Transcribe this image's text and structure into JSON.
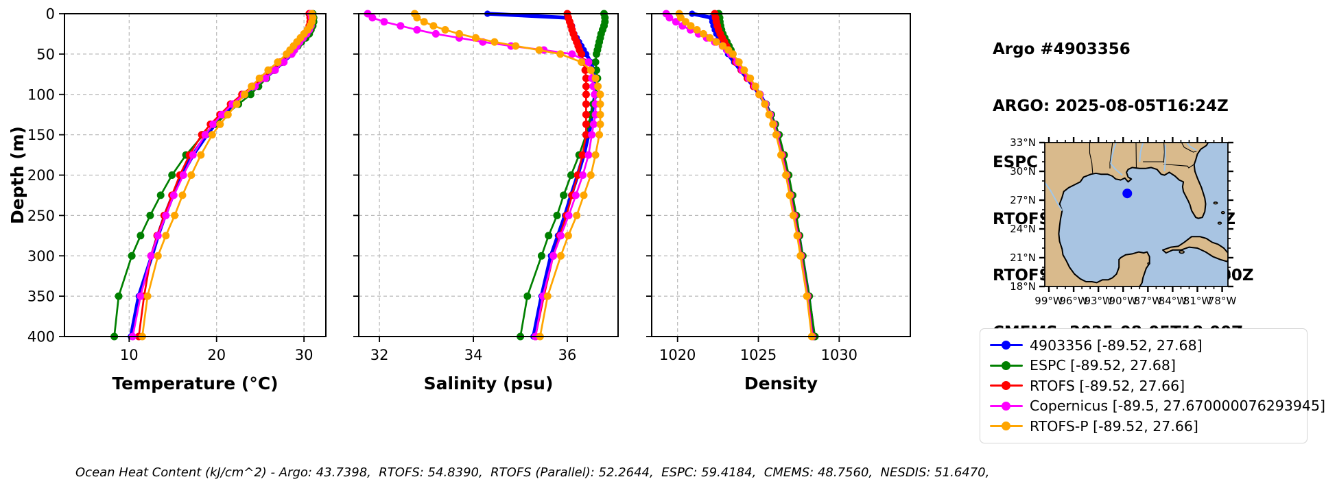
{
  "header": {
    "title": "Argo #4903356",
    "lines": [
      "ARGO: 2025-08-05T16:24Z",
      "ESPC : 2025-08-05T15:00Z",
      "RTOFS: 2025-08-05T18:00Z",
      "RTOFS-P: 2025-08-01T00:00Z",
      "CMEMS: 2025-08-05T18:00Z"
    ]
  },
  "footer": {
    "text": "Ocean Heat Content (kJ/cm^2) - Argo: 43.7398,  RTOFS: 54.8390,  RTOFS (Parallel): 52.2644,  ESPC: 59.4184,  CMEMS: 48.7560,  NESDIS: 51.6470,"
  },
  "legend": {
    "items": [
      {
        "label": "4903356 [-89.52, 27.68]",
        "color": "#0000ff"
      },
      {
        "label": "ESPC [-89.52, 27.68]",
        "color": "#008000"
      },
      {
        "label": "RTOFS [-89.52, 27.66]",
        "color": "#ff0000"
      },
      {
        "label": "Copernicus [-89.5, 27.670000076293945]",
        "color": "#ff00ff"
      },
      {
        "label": "RTOFS-P [-89.52, 27.66]",
        "color": "#ffa500"
      }
    ]
  },
  "map": {
    "lat_deg": [
      33,
      30,
      27,
      24,
      21,
      18
    ],
    "lat_labels": [
      "33°N",
      "30°N",
      "27°N",
      "24°N",
      "21°N",
      "18°N"
    ],
    "lon_deg": [
      -99,
      -96,
      -93,
      -90,
      -87,
      -84,
      -81,
      -78
    ],
    "lon_labels": [
      "99°W",
      "96°W",
      "93°W",
      "90°W",
      "87°W",
      "84°W",
      "81°W",
      "78°W"
    ],
    "marker": {
      "lon": -89.5,
      "lat": 27.7,
      "color": "#0000ff"
    },
    "land_color": "#d9ba8c",
    "ocean_color": "#a8c4e2",
    "river_color": "#9fc6ea"
  },
  "chart_data": [
    {
      "type": "line",
      "xlabel": "Temperature (°C)",
      "ylabel": "Depth (m)",
      "xlim": [
        2.6,
        32.5
      ],
      "xticks": [
        10,
        20,
        30
      ],
      "ylim": [
        0,
        400
      ],
      "yticks": [
        0,
        50,
        100,
        150,
        200,
        250,
        300,
        350,
        400
      ],
      "depths": [
        0,
        5,
        10,
        15,
        20,
        25,
        30,
        35,
        40,
        45,
        50,
        60,
        70,
        80,
        90,
        100,
        112,
        125,
        137,
        150,
        175,
        200,
        225,
        250,
        275,
        300,
        350,
        400
      ],
      "series": [
        {
          "name": "4903356",
          "color": "#0000ff",
          "values": [
            30.8,
            30.8,
            30.8,
            30.7,
            30.5,
            30.2,
            29.8,
            29.4,
            29.1,
            28.8,
            28.6,
            27.6,
            26.6,
            25.5,
            24.4,
            23.2,
            21.9,
            20.8,
            19.8,
            18.9,
            17.3,
            16.0,
            15.0,
            14.1,
            13.3,
            12.6,
            11.1,
            10.2
          ]
        },
        {
          "name": "ESPC",
          "color": "#008000",
          "values": [
            31.0,
            31.1,
            31.1,
            31.0,
            30.8,
            30.6,
            30.2,
            29.7,
            29.3,
            28.9,
            28.5,
            27.5,
            26.6,
            25.7,
            24.8,
            23.9,
            22.5,
            21.1,
            19.8,
            18.5,
            16.5,
            14.9,
            13.6,
            12.4,
            11.3,
            10.3,
            8.8,
            8.3
          ]
        },
        {
          "name": "RTOFS",
          "color": "#ff0000",
          "values": [
            30.6,
            30.7,
            30.7,
            30.6,
            30.4,
            30.1,
            29.7,
            29.3,
            28.9,
            28.6,
            28.2,
            27.3,
            26.3,
            25.2,
            24.1,
            22.9,
            21.6,
            20.4,
            19.3,
            18.3,
            16.9,
            15.8,
            14.9,
            14.0,
            13.2,
            12.5,
            11.7,
            11.1
          ]
        },
        {
          "name": "Copernicus",
          "color": "#ff00ff",
          "values": [
            30.8,
            30.9,
            30.9,
            30.8,
            30.6,
            30.3,
            29.9,
            29.5,
            29.2,
            28.9,
            28.6,
            27.7,
            26.7,
            25.6,
            24.4,
            23.1,
            21.8,
            20.6,
            19.6,
            18.7,
            17.3,
            16.2,
            15.1,
            14.2,
            13.3,
            12.5,
            11.3,
            10.4
          ]
        },
        {
          "name": "RTOFS-P",
          "color": "#ffa500",
          "values": [
            30.9,
            31.0,
            30.9,
            30.7,
            30.4,
            30.0,
            29.6,
            29.2,
            28.8,
            28.4,
            28.0,
            27.0,
            25.9,
            24.9,
            24.0,
            23.2,
            22.3,
            21.3,
            20.4,
            19.5,
            18.2,
            17.1,
            16.1,
            15.2,
            14.2,
            13.3,
            12.1,
            11.5
          ]
        }
      ]
    },
    {
      "type": "line",
      "xlabel": "Salinity (psu)",
      "ylabel": "",
      "xlim": [
        31.56,
        37.08
      ],
      "xticks": [
        32,
        34,
        36
      ],
      "ylim": [
        0,
        400
      ],
      "yticks": [
        0,
        50,
        100,
        150,
        200,
        250,
        300,
        350,
        400
      ],
      "depths": [
        0,
        5,
        10,
        15,
        20,
        25,
        30,
        35,
        40,
        45,
        50,
        60,
        70,
        80,
        90,
        100,
        112,
        125,
        137,
        150,
        175,
        200,
        225,
        250,
        275,
        300,
        350,
        400
      ],
      "series": [
        {
          "name": "4903356",
          "color": "#0000ff",
          "values": [
            34.3,
            36.0,
            36.05,
            36.1,
            36.1,
            36.15,
            36.2,
            36.25,
            36.3,
            36.35,
            36.4,
            36.5,
            36.55,
            36.6,
            36.6,
            36.6,
            36.55,
            36.52,
            36.5,
            36.45,
            36.35,
            36.22,
            36.08,
            35.95,
            35.8,
            35.65,
            35.45,
            35.28
          ]
        },
        {
          "name": "ESPC",
          "color": "#008000",
          "values": [
            36.78,
            36.8,
            36.8,
            36.78,
            36.75,
            36.72,
            36.7,
            36.68,
            36.66,
            36.64,
            36.62,
            36.6,
            36.62,
            36.64,
            36.64,
            36.6,
            36.55,
            36.5,
            36.45,
            36.4,
            36.25,
            36.08,
            35.92,
            35.78,
            35.6,
            35.45,
            35.15,
            35.0
          ]
        },
        {
          "name": "RTOFS",
          "color": "#ff0000",
          "values": [
            36.0,
            36.02,
            36.05,
            36.08,
            36.1,
            36.13,
            36.16,
            36.2,
            36.23,
            36.26,
            36.3,
            36.35,
            36.38,
            36.4,
            36.4,
            36.4,
            36.4,
            36.4,
            36.4,
            36.4,
            36.32,
            36.22,
            36.1,
            35.98,
            35.84,
            35.7,
            35.5,
            35.32
          ]
        },
        {
          "name": "Copernicus",
          "color": "#ff00ff",
          "values": [
            31.75,
            31.85,
            32.1,
            32.45,
            32.8,
            33.2,
            33.7,
            34.2,
            34.8,
            35.5,
            36.1,
            36.45,
            36.5,
            36.52,
            36.55,
            36.58,
            36.6,
            36.6,
            36.56,
            36.52,
            36.45,
            36.33,
            36.18,
            36.03,
            35.86,
            35.7,
            35.48,
            35.32
          ]
        },
        {
          "name": "RTOFS-P",
          "color": "#ffa500",
          "values": [
            32.75,
            32.8,
            32.95,
            33.15,
            33.4,
            33.7,
            34.05,
            34.45,
            34.9,
            35.4,
            35.85,
            36.3,
            36.5,
            36.6,
            36.65,
            36.7,
            36.7,
            36.7,
            36.7,
            36.68,
            36.6,
            36.5,
            36.35,
            36.2,
            36.02,
            35.86,
            35.58,
            35.42
          ]
        }
      ]
    },
    {
      "type": "line",
      "xlabel": "Density",
      "ylabel": "",
      "xlim": [
        1018.4,
        1034.4
      ],
      "xticks": [
        1020,
        1025,
        1030
      ],
      "ylim": [
        0,
        400
      ],
      "yticks": [
        0,
        50,
        100,
        150,
        200,
        250,
        300,
        350,
        400
      ],
      "depths": [
        0,
        5,
        10,
        15,
        20,
        25,
        30,
        35,
        40,
        45,
        50,
        60,
        70,
        80,
        90,
        100,
        112,
        125,
        137,
        150,
        175,
        200,
        225,
        250,
        275,
        300,
        350,
        400
      ],
      "series": [
        {
          "name": "4903356",
          "color": "#0000ff",
          "values": [
            1020.9,
            1022.1,
            1022.15,
            1022.22,
            1022.3,
            1022.4,
            1022.55,
            1022.7,
            1022.85,
            1023.0,
            1023.12,
            1023.5,
            1023.9,
            1024.3,
            1024.7,
            1025.08,
            1025.45,
            1025.75,
            1026.0,
            1026.2,
            1026.52,
            1026.8,
            1027.05,
            1027.28,
            1027.5,
            1027.7,
            1028.1,
            1028.42
          ]
        },
        {
          "name": "ESPC",
          "color": "#008000",
          "values": [
            1022.55,
            1022.6,
            1022.62,
            1022.66,
            1022.72,
            1022.8,
            1022.92,
            1023.05,
            1023.18,
            1023.3,
            1023.42,
            1023.72,
            1024.05,
            1024.4,
            1024.75,
            1025.1,
            1025.48,
            1025.8,
            1026.05,
            1026.28,
            1026.6,
            1026.88,
            1027.12,
            1027.35,
            1027.55,
            1027.75,
            1028.15,
            1028.5
          ]
        },
        {
          "name": "RTOFS",
          "color": "#ff0000",
          "values": [
            1022.3,
            1022.35,
            1022.4,
            1022.46,
            1022.54,
            1022.64,
            1022.76,
            1022.9,
            1023.03,
            1023.15,
            1023.28,
            1023.6,
            1023.95,
            1024.32,
            1024.7,
            1025.05,
            1025.42,
            1025.72,
            1025.96,
            1026.16,
            1026.48,
            1026.76,
            1027.0,
            1027.24,
            1027.46,
            1027.66,
            1028.05,
            1028.36
          ]
        },
        {
          "name": "Copernicus",
          "color": "#ff00ff",
          "values": [
            1019.3,
            1019.5,
            1019.9,
            1020.3,
            1020.8,
            1021.3,
            1021.8,
            1022.3,
            1022.78,
            1023.05,
            1023.28,
            1023.68,
            1024.0,
            1024.4,
            1024.78,
            1025.1,
            1025.45,
            1025.72,
            1025.95,
            1026.15,
            1026.45,
            1026.74,
            1026.98,
            1027.2,
            1027.44,
            1027.64,
            1028.04,
            1028.34
          ]
        },
        {
          "name": "RTOFS-P",
          "color": "#ffa500",
          "values": [
            1020.1,
            1020.2,
            1020.5,
            1020.82,
            1021.2,
            1021.6,
            1022.0,
            1022.4,
            1022.8,
            1023.15,
            1023.42,
            1023.8,
            1024.12,
            1024.5,
            1024.82,
            1025.06,
            1025.4,
            1025.66,
            1025.9,
            1026.1,
            1026.4,
            1026.7,
            1026.94,
            1027.16,
            1027.4,
            1027.6,
            1028.0,
            1028.3
          ]
        }
      ]
    }
  ]
}
